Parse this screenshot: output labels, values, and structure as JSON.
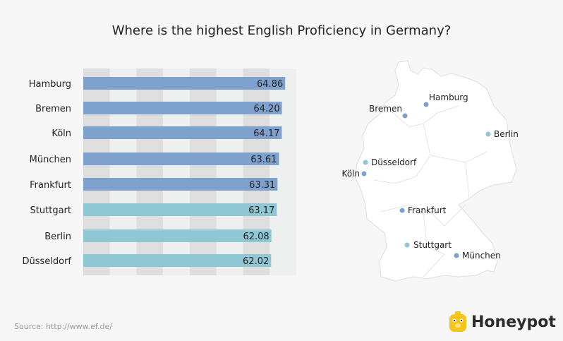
{
  "title": "Where is the highest English Proficiency in Germany?",
  "source": "Source: http://www.ef.de/",
  "brand": "Honeypot",
  "colors": {
    "blue": "#7fa1cd",
    "teal": "#8fc7d4",
    "stripe_dark": "#dedede",
    "stripe_light": "#eef0f0"
  },
  "chart_data": {
    "type": "bar",
    "orientation": "horizontal",
    "title": "Where is the highest English Proficiency in Germany?",
    "categories": [
      "Hamburg",
      "Bremen",
      "Köln",
      "München",
      "Frankfurt",
      "Stuttgart",
      "Berlin",
      "Düsseldorf"
    ],
    "values": [
      64.86,
      64.2,
      64.17,
      63.61,
      63.31,
      63.17,
      62.08,
      62.02
    ],
    "labels": [
      "64.86",
      "64.20",
      "64.17",
      "63.61",
      "63.31",
      "63.17",
      "62.08",
      "62.02"
    ],
    "bar_colors": [
      "#7fa1cd",
      "#7fa1cd",
      "#7fa1cd",
      "#7fa1cd",
      "#7fa1cd",
      "#8fc7d4",
      "#8fc7d4",
      "#8fc7d4"
    ],
    "grid": "alternating vertical stripes",
    "legend": "none"
  },
  "map": {
    "cities": [
      {
        "name": "Hamburg",
        "color": "#7fa1cd"
      },
      {
        "name": "Bremen",
        "color": "#7fa1cd"
      },
      {
        "name": "Berlin",
        "color": "#8fc7d4"
      },
      {
        "name": "Düsseldorf",
        "color": "#8fc7d4"
      },
      {
        "name": "Köln",
        "color": "#7fa1cd"
      },
      {
        "name": "Frankfurt",
        "color": "#7fa1cd"
      },
      {
        "name": "Stuttgart",
        "color": "#8fc7d4"
      },
      {
        "name": "München",
        "color": "#7fa1cd"
      }
    ]
  }
}
